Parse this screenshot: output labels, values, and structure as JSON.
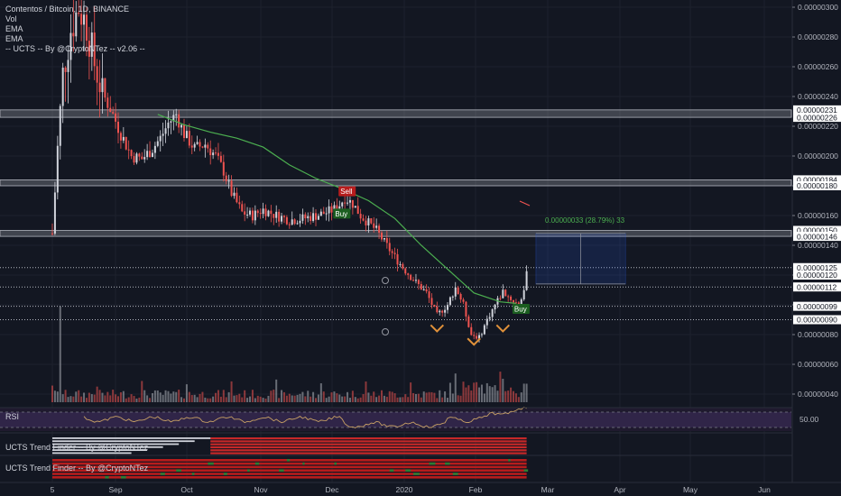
{
  "legend": {
    "title": "Contentos / Bitcoin, 1D, BINANCE",
    "vol": "Vol",
    "ema1": "EMA",
    "ema2": "EMA",
    "ucts": "-- UCTS -- By @CryptoNTez -- v2.06 --"
  },
  "panes": {
    "rsi_label": "RSI",
    "rsi_value": "50.00",
    "trend1_label": "UCTS Trend Finder -- By @CryptoNTez",
    "trend2_label": "UCTS Trend Finder -- By @CryptoNTez"
  },
  "measure": {
    "label": "0.00000033 (28.79%) 33"
  },
  "colors": {
    "background": "#131722",
    "up": "#d1d4dc",
    "down": "#ef5350",
    "ema": "#4caf50",
    "zone": "#9598a1",
    "buy": "#26a69a",
    "sell": "#ef5350",
    "rsi_line": "#c8a165",
    "rsi_band": "#2a1f3d",
    "measure_box": "#1e3a5f",
    "measure_text": "#4caf50",
    "pattern": "#e0913a"
  },
  "chart_data": {
    "type": "candlestick",
    "x_ticks": [
      "5",
      "Sep",
      "Oct",
      "Nov",
      "Dec",
      "2020",
      "Feb",
      "Mar",
      "Apr",
      "May",
      "Jun"
    ],
    "y_ticks": [
      "0.00000300",
      "0.00000280",
      "0.00000260",
      "0.00000240",
      "0.00000220",
      "0.00000200",
      "0.00000180",
      "0.00000160",
      "0.00000140",
      "0.00000120",
      "0.00000100",
      "0.00000080",
      "0.00000060",
      "0.00000040"
    ],
    "y_tick_values": [
      300,
      280,
      260,
      240,
      220,
      200,
      180,
      160,
      140,
      120,
      100,
      80,
      60,
      40
    ],
    "price_labels": [
      {
        "label": "0.00000231",
        "value": 231,
        "bg": "#ffffff",
        "fg": "#131722"
      },
      {
        "label": "0.00000226",
        "value": 226,
        "bg": "#ffffff",
        "fg": "#131722"
      },
      {
        "label": "0.00000184",
        "value": 184,
        "bg": "#ffffff",
        "fg": "#131722"
      },
      {
        "label": "0.00000180",
        "value": 180,
        "bg": "#ffffff",
        "fg": "#131722"
      },
      {
        "label": "0.00000150",
        "value": 150,
        "bg": "#ffffff",
        "fg": "#131722"
      },
      {
        "label": "0.00000146",
        "value": 146,
        "bg": "#ffffff",
        "fg": "#131722"
      },
      {
        "label": "0.00000125",
        "value": 125,
        "bg": "#ffffff",
        "fg": "#131722"
      },
      {
        "label": "0.00000120",
        "value": 120,
        "bg": "#ffffff",
        "fg": "#131722"
      },
      {
        "label": "0.00000112",
        "value": 112,
        "bg": "#ffffff",
        "fg": "#131722"
      },
      {
        "label": "0.00000099",
        "value": 99,
        "bg": "#ffffff",
        "fg": "#131722"
      },
      {
        "label": "0.00000090",
        "value": 90,
        "bg": "#ffffff",
        "fg": "#131722"
      }
    ],
    "zones": [
      {
        "low": 226,
        "high": 231
      },
      {
        "low": 180,
        "high": 184
      },
      {
        "low": 146,
        "high": 150
      }
    ],
    "hlines": [
      125,
      112,
      99,
      90
    ],
    "signals": [
      {
        "type": "Sell",
        "day": 110,
        "price": 176
      },
      {
        "type": "Buy",
        "day": 108,
        "price": 161
      },
      {
        "type": "Buy",
        "day": 176,
        "price": 97
      }
    ],
    "pattern_marks": [
      {
        "day": 146,
        "price": 84
      },
      {
        "day": 160,
        "price": 75
      },
      {
        "day": 171,
        "price": 84
      }
    ],
    "measure_range": {
      "day_start": 176,
      "day_end": 210,
      "low": 114,
      "high": 148
    },
    "ema_points": [
      [
        40,
        228
      ],
      [
        50,
        221
      ],
      [
        60,
        216
      ],
      [
        70,
        212
      ],
      [
        80,
        206
      ],
      [
        90,
        194
      ],
      [
        100,
        185
      ],
      [
        110,
        178
      ],
      [
        120,
        170
      ],
      [
        130,
        158
      ],
      [
        140,
        140
      ],
      [
        150,
        124
      ],
      [
        160,
        108
      ],
      [
        170,
        102
      ],
      [
        176,
        101
      ]
    ],
    "price_path": [
      [
        0,
        148
      ],
      [
        2,
        205
      ],
      [
        4,
        255
      ],
      [
        7,
        285
      ],
      [
        10,
        300
      ],
      [
        13,
        288
      ],
      [
        16,
        262
      ],
      [
        19,
        242
      ],
      [
        22,
        232
      ],
      [
        26,
        215
      ],
      [
        30,
        200
      ],
      [
        34,
        198
      ],
      [
        38,
        205
      ],
      [
        41,
        212
      ],
      [
        44,
        222
      ],
      [
        47,
        228
      ],
      [
        50,
        215
      ],
      [
        54,
        205
      ],
      [
        58,
        208
      ],
      [
        62,
        200
      ],
      [
        65,
        190
      ],
      [
        68,
        175
      ],
      [
        72,
        162
      ],
      [
        76,
        160
      ],
      [
        80,
        164
      ],
      [
        85,
        160
      ],
      [
        90,
        157
      ],
      [
        95,
        158
      ],
      [
        100,
        160
      ],
      [
        104,
        162
      ],
      [
        108,
        165
      ],
      [
        111,
        172
      ],
      [
        114,
        168
      ],
      [
        117,
        160
      ],
      [
        120,
        155
      ],
      [
        123,
        150
      ],
      [
        126,
        142
      ],
      [
        130,
        132
      ],
      [
        134,
        123
      ],
      [
        138,
        115
      ],
      [
        142,
        108
      ],
      [
        146,
        93
      ],
      [
        150,
        100
      ],
      [
        153,
        112
      ],
      [
        156,
        100
      ],
      [
        159,
        80
      ],
      [
        162,
        78
      ],
      [
        165,
        90
      ],
      [
        168,
        100
      ],
      [
        171,
        109
      ],
      [
        174,
        104
      ],
      [
        177,
        100
      ],
      [
        179,
        110
      ],
      [
        180,
        120
      ]
    ],
    "day_range": [
      0,
      240
    ],
    "ylim": [
      30,
      305
    ]
  }
}
